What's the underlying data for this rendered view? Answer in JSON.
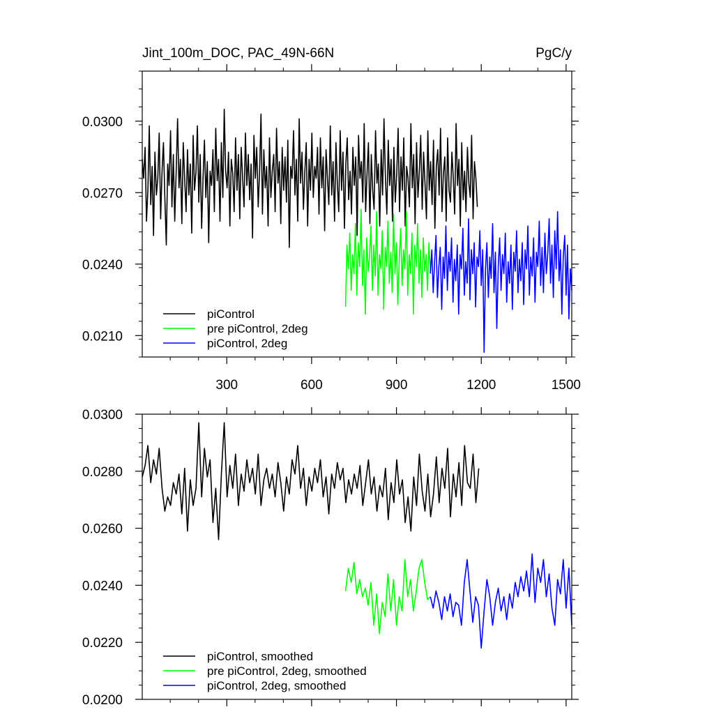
{
  "chart_data": [
    {
      "type": "line",
      "title": "Jint_100m_DOC, PAC_49N-66N",
      "units": "PgC/y",
      "xlim": [
        1,
        1520
      ],
      "ylim": [
        0.0201,
        0.0321
      ],
      "xticks": [
        300,
        600,
        900,
        1200,
        1500
      ],
      "xtick_labels": [
        "300",
        "600",
        "900",
        "1200",
        "1500"
      ],
      "yticks": [
        0.021,
        0.024,
        0.027,
        0.03
      ],
      "ytick_labels": [
        "0.0210",
        "0.0240",
        "0.0270",
        "0.0300"
      ],
      "legend_position": "bottom-left",
      "series": [
        {
          "name": "piControl",
          "color": "#000000",
          "x_start": 1,
          "x_end": 1200,
          "step": 5,
          "values": [
            0.0284,
            0.0276,
            0.0289,
            0.0258,
            0.0271,
            0.0298,
            0.0265,
            0.0281,
            0.0252,
            0.0287,
            0.0269,
            0.0276,
            0.0295,
            0.0259,
            0.0279,
            0.0291,
            0.0268,
            0.0248,
            0.0282,
            0.0273,
            0.0296,
            0.0264,
            0.0286,
            0.0258,
            0.0279,
            0.0301,
            0.0272,
            0.0284,
            0.0257,
            0.0291,
            0.0276,
            0.0262,
            0.0288,
            0.0269,
            0.0282,
            0.0253,
            0.0294,
            0.0271,
            0.0279,
            0.0298,
            0.0266,
            0.0286,
            0.0255,
            0.0276,
            0.0292,
            0.0268,
            0.0283,
            0.0249,
            0.0279,
            0.0273,
            0.0288,
            0.0262,
            0.0297,
            0.0275,
            0.0284,
            0.0258,
            0.0291,
            0.0268,
            0.0305,
            0.0279,
            0.0272,
            0.0287,
            0.0256,
            0.0284,
            0.0278,
            0.0262,
            0.0293,
            0.0271,
            0.0286,
            0.0259,
            0.0289,
            0.0276,
            0.0264,
            0.0295,
            0.0273,
            0.0286,
            0.0267,
            0.0282,
            0.0251,
            0.0294,
            0.0276,
            0.0289,
            0.0264,
            0.0279,
            0.0303,
            0.0261,
            0.0288,
            0.0272,
            0.0281,
            0.0256,
            0.0293,
            0.0268,
            0.0279,
            0.0286,
            0.0262,
            0.0297,
            0.0274,
            0.0283,
            0.0257,
            0.0289,
            0.0271,
            0.0285,
            0.0266,
            0.0292,
            0.0247,
            0.0281,
            0.0276,
            0.0296,
            0.0269,
            0.0284,
            0.0258,
            0.0301,
            0.0274,
            0.0287,
            0.0263,
            0.0279,
            0.0291,
            0.0256,
            0.0284,
            0.0271,
            0.0295,
            0.0268,
            0.0281,
            0.0276,
            0.0289,
            0.0261,
            0.0293,
            0.0272,
            0.0285,
            0.0254,
            0.0288,
            0.0276,
            0.0265,
            0.0298,
            0.0269,
            0.0283,
            0.0258,
            0.0291,
            0.0274,
            0.0262,
            0.0296,
            0.0271,
            0.0287,
            0.0255,
            0.0282,
            0.0293,
            0.0267,
            0.0279,
            0.0261,
            0.0289,
            0.0273,
            0.0285,
            0.0252,
            0.0294,
            0.0276,
            0.0283,
            0.0266,
            0.0299,
            0.0262,
            0.0278,
            0.0291,
            0.0257,
            0.0286,
            0.0271,
            0.0263,
            0.0296,
            0.0274,
            0.0282,
            0.0256,
            0.0288,
            0.0269,
            0.0301,
            0.0276,
            0.0261,
            0.0292,
            0.0273,
            0.0284,
            0.0258,
            0.0289,
            0.0266,
            0.0278,
            0.0297,
            0.0262,
            0.0285,
            0.0271,
            0.0293,
            0.0256,
            0.0281,
            0.0276,
            0.0264,
            0.0299,
            0.0272,
            0.0286,
            0.0257,
            0.0291,
            0.0268,
            0.0279,
            0.0294,
            0.0263,
            0.0287,
            0.0274,
            0.0259,
            0.0296,
            0.0271,
            0.0283,
            0.0265,
            0.0292,
            0.0255,
            0.0281,
            0.0288,
            0.0269,
            0.0297,
            0.0262,
            0.0278,
            0.0285,
            0.0258,
            0.0293,
            0.0271,
            0.0266,
            0.0287,
            0.0276,
            0.0261,
            0.0299,
            0.0273,
            0.0284,
            0.0256,
            0.0291,
            0.0267,
            0.0279,
            0.0262,
            0.0289,
            0.0274,
            0.0268,
            0.0294,
            0.0259,
            0.0283,
            0.0276,
            0.0264
          ]
        },
        {
          "name": "pre piControl, 2deg",
          "color": "#00ff00",
          "x_start": 720,
          "x_end": 1020,
          "step": 5,
          "values": [
            0.0222,
            0.0248,
            0.0238,
            0.0253,
            0.0229,
            0.0244,
            0.0236,
            0.0257,
            0.0227,
            0.0249,
            0.0239,
            0.0263,
            0.0231,
            0.0246,
            0.0219,
            0.0251,
            0.0237,
            0.0243,
            0.0256,
            0.0229,
            0.0248,
            0.0235,
            0.0262,
            0.0227,
            0.0244,
            0.0238,
            0.0254,
            0.0221,
            0.0247,
            0.0239,
            0.0258,
            0.0232,
            0.0245,
            0.0228,
            0.0261,
            0.0236,
            0.0249,
            0.0223,
            0.0242,
            0.0255,
            0.0231,
            0.0246,
            0.0238,
            0.0262,
            0.0227,
            0.0244,
            0.0236,
            0.0253,
            0.0219,
            0.0248,
            0.0239,
            0.0257,
            0.0232,
            0.0246,
            0.0226,
            0.0251,
            0.0237,
            0.0244,
            0.0229,
            0.0249,
            0.0236
          ]
        },
        {
          "name": "piControl, 2deg",
          "color": "#0000ff",
          "x_start": 1020,
          "x_end": 1520,
          "step": 5,
          "values": [
            0.0236,
            0.0246,
            0.0228,
            0.0241,
            0.0252,
            0.0226,
            0.0239,
            0.0247,
            0.0221,
            0.0243,
            0.0234,
            0.0256,
            0.0229,
            0.0245,
            0.0237,
            0.0251,
            0.0224,
            0.0242,
            0.0233,
            0.0248,
            0.0219,
            0.0244,
            0.0238,
            0.0255,
            0.0227,
            0.0241,
            0.0232,
            0.0259,
            0.0225,
            0.0246,
            0.0236,
            0.0249,
            0.0222,
            0.0243,
            0.0239,
            0.0254,
            0.0231,
            0.0246,
            0.0203,
            0.0238,
            0.0249,
            0.0226,
            0.0243,
            0.0234,
            0.0257,
            0.0228,
            0.0245,
            0.0213,
            0.0239,
            0.0251,
            0.0229,
            0.0244,
            0.0236,
            0.0253,
            0.0224,
            0.0241,
            0.0232,
            0.0248,
            0.0221,
            0.0245,
            0.0237,
            0.0254,
            0.0228,
            0.0242,
            0.0233,
            0.0249,
            0.0223,
            0.0246,
            0.0238,
            0.0256,
            0.0227,
            0.0243,
            0.0235,
            0.0251,
            0.0224,
            0.0245,
            0.0239,
            0.0258,
            0.0231,
            0.0247,
            0.0228,
            0.0253,
            0.0236,
            0.0244,
            0.0259,
            0.0232,
            0.0248,
            0.0226,
            0.0254,
            0.0238,
            0.0262,
            0.0233,
            0.0246,
            0.0219,
            0.0243,
            0.0252,
            0.0227,
            0.0248,
            0.0217,
            0.0238,
            0.0229
          ]
        }
      ]
    },
    {
      "type": "line",
      "xlim": [
        1,
        1520
      ],
      "ylim": [
        0.02,
        0.03
      ],
      "xticks": [
        300,
        600,
        900,
        1200,
        1500
      ],
      "yticks": [
        0.02,
        0.022,
        0.024,
        0.026,
        0.028,
        0.03
      ],
      "ytick_labels": [
        "0.0200",
        "0.0220",
        "0.0240",
        "0.0260",
        "0.0280",
        "0.0300"
      ],
      "legend_position": "bottom-left",
      "series": [
        {
          "name": "piControl, smoothed",
          "color": "#000000",
          "x_start": 1,
          "x_end": 1200,
          "step": 10,
          "values": [
            0.0278,
            0.0282,
            0.0289,
            0.0276,
            0.0284,
            0.0279,
            0.0288,
            0.0274,
            0.0266,
            0.0271,
            0.0268,
            0.0276,
            0.0272,
            0.0279,
            0.0265,
            0.0281,
            0.0259,
            0.0277,
            0.0268,
            0.0274,
            0.0297,
            0.0271,
            0.0288,
            0.0278,
            0.0284,
            0.0262,
            0.0274,
            0.0256,
            0.0279,
            0.0297,
            0.0271,
            0.0282,
            0.0274,
            0.0286,
            0.0268,
            0.0279,
            0.0273,
            0.0284,
            0.0276,
            0.0281,
            0.0272,
            0.0286,
            0.0268,
            0.0277,
            0.0281,
            0.0274,
            0.0279,
            0.0271,
            0.0283,
            0.0276,
            0.0266,
            0.0278,
            0.0272,
            0.0284,
            0.0279,
            0.0289,
            0.0274,
            0.0281,
            0.0268,
            0.0278,
            0.0273,
            0.0281,
            0.0276,
            0.0284,
            0.0271,
            0.0278,
            0.0265,
            0.0279,
            0.0274,
            0.0283,
            0.0277,
            0.0281,
            0.0269,
            0.0277,
            0.0272,
            0.0279,
            0.0274,
            0.0282,
            0.0268,
            0.0276,
            0.0284,
            0.0272,
            0.0278,
            0.0266,
            0.0275,
            0.0271,
            0.0281,
            0.0263,
            0.0276,
            0.0269,
            0.0284,
            0.0272,
            0.0277,
            0.0262,
            0.0271,
            0.0259,
            0.0278,
            0.0268,
            0.0286,
            0.0273,
            0.0266,
            0.0279,
            0.0264,
            0.0272,
            0.0285,
            0.0269,
            0.0281,
            0.0274,
            0.0288,
            0.0264,
            0.0279,
            0.0271,
            0.0283,
            0.0268,
            0.0289,
            0.0276,
            0.0274,
            0.0286,
            0.0269,
            0.0281
          ]
        },
        {
          "name": "pre piControl, 2deg, smoothed",
          "color": "#00ff00",
          "x_start": 720,
          "x_end": 1020,
          "step": 10,
          "values": [
            0.0238,
            0.0246,
            0.0241,
            0.0248,
            0.0237,
            0.0242,
            0.0236,
            0.0239,
            0.0233,
            0.0241,
            0.0226,
            0.0237,
            0.0223,
            0.0234,
            0.0229,
            0.0244,
            0.0231,
            0.0242,
            0.0226,
            0.0236,
            0.0231,
            0.0249,
            0.0236,
            0.0242,
            0.0231,
            0.0238,
            0.0246,
            0.0249,
            0.0241,
            0.0235,
            0.0236
          ]
        },
        {
          "name": "piControl, 2deg, smoothed",
          "color": "#0000ff",
          "x_start": 1020,
          "x_end": 1520,
          "step": 10,
          "values": [
            0.0236,
            0.0232,
            0.0238,
            0.0234,
            0.0228,
            0.0236,
            0.0231,
            0.0237,
            0.0229,
            0.0234,
            0.0233,
            0.0226,
            0.0241,
            0.0249,
            0.0238,
            0.0227,
            0.0236,
            0.0233,
            0.0218,
            0.0231,
            0.0242,
            0.0236,
            0.0226,
            0.0234,
            0.0239,
            0.0231,
            0.0236,
            0.0228,
            0.0237,
            0.0232,
            0.0241,
            0.0236,
            0.0243,
            0.0238,
            0.0245,
            0.0236,
            0.0251,
            0.0234,
            0.0246,
            0.0241,
            0.0249,
            0.0236,
            0.0244,
            0.0232,
            0.0226,
            0.0242,
            0.0237,
            0.0249,
            0.0232,
            0.0246,
            0.0226
          ]
        }
      ]
    }
  ]
}
